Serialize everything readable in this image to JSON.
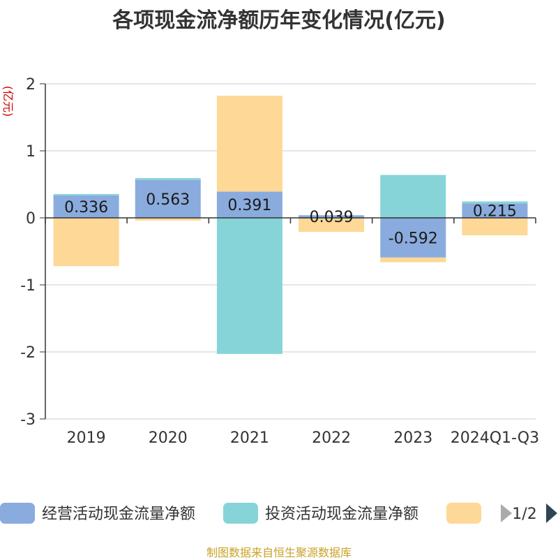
{
  "title": "各项现金流净额历年变化情况(亿元)",
  "source": "制图数据来自恒生聚源数据库",
  "legend_page": "1/2",
  "icons": {
    "legend_prev": "arrow-left-icon",
    "legend_next": "arrow-right-icon"
  },
  "chart_data": {
    "type": "bar",
    "stacked": true,
    "title": "各项现金流净额历年变化情况(亿元)",
    "ylabel": "(亿元)",
    "ylim": [
      -3,
      2
    ],
    "yticks": [
      2,
      1,
      0,
      -1,
      -2,
      -3
    ],
    "grid": true,
    "legend_position": "bottom",
    "categories": [
      "2019",
      "2020",
      "2021",
      "2022",
      "2023",
      "2024Q1-Q3"
    ],
    "series": [
      {
        "name": "经营活动现金流量净额",
        "color": "#8aabdd",
        "values": [
          0.336,
          0.563,
          0.391,
          0.039,
          -0.592,
          0.215
        ],
        "labels": [
          "0.336",
          "0.563",
          "0.391",
          "0.039",
          "-0.592",
          "0.215"
        ]
      },
      {
        "name": "投资活动现金流量净额",
        "color": "#86d4d8",
        "values": [
          0.02,
          0.03,
          -2.03,
          -0.01,
          0.64,
          0.03
        ]
      },
      {
        "name": "",
        "color": "#fdd896",
        "values": [
          -0.72,
          -0.04,
          1.43,
          -0.2,
          -0.07,
          -0.26
        ]
      }
    ]
  }
}
